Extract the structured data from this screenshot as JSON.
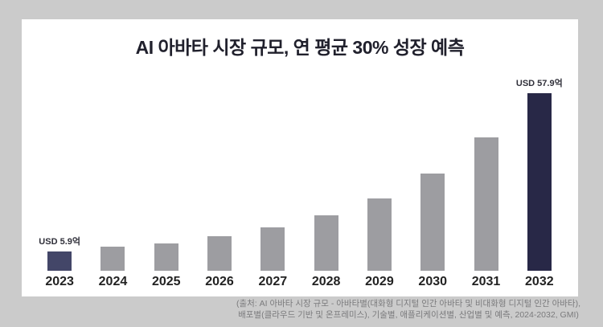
{
  "chart": {
    "source_line1": "(출처: AI 아바타 시장 규모 - 아바타별(대화형 디지털 인간 아바타 및 비대화형 디지털 인간 아바타),",
    "source_line2": "배포별(클라우드 기반 및 온프레미스), 기술별, 애플리케이션별, 산업별 및 예측, 2024-2032, GMI)"
  },
  "chart_data": {
    "type": "bar",
    "title": "AI 아바타 시장 규모, 연 평균 30% 성장 예측",
    "categories": [
      "2023",
      "2024",
      "2025",
      "2026",
      "2027",
      "2028",
      "2029",
      "2030",
      "2031",
      "2032"
    ],
    "values": [
      5.9,
      7.4,
      8.4,
      10.6,
      13.3,
      17.1,
      22.3,
      30.0,
      41.1,
      57.9
    ],
    "value_labels": [
      "USD 5.9억",
      null,
      null,
      null,
      null,
      null,
      null,
      null,
      null,
      "USD 57.9억"
    ],
    "xlabel": "",
    "ylabel": "",
    "ylim": [
      0,
      60
    ],
    "grid": false,
    "legend": false,
    "highlighted_categories": [
      "2023",
      "2032"
    ]
  },
  "colors": {
    "page_bg": "#cbcbcb",
    "card_bg": "#ffffff",
    "title": "#20202c",
    "bar_default": "#9d9da1",
    "bar_first": "#434668",
    "bar_last": "#282847",
    "year_label": "#222222",
    "value_label": "#30303a",
    "caption": "#7b7b7d"
  }
}
